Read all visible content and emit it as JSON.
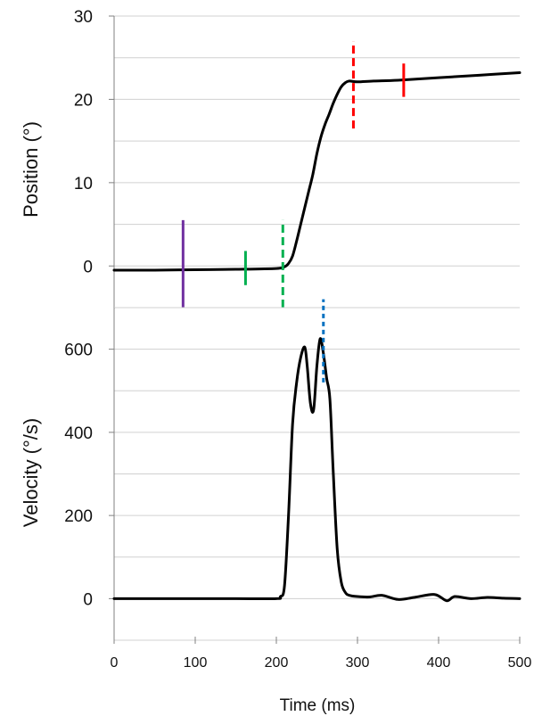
{
  "chart_data": [
    {
      "type": "line",
      "title": "",
      "xlabel": "",
      "ylabel": "Position (°)",
      "xlim": [
        0,
        500
      ],
      "ylim": [
        -5,
        30
      ],
      "yticks": [
        0,
        10,
        20,
        30
      ],
      "grid": "horizontal",
      "series": [
        {
          "color": "#000000",
          "x": [
            0,
            50,
            100,
            150,
            200,
            210,
            215,
            220,
            225,
            230,
            235,
            240,
            245,
            250,
            255,
            260,
            265,
            270,
            275,
            280,
            285,
            290,
            300,
            320,
            350,
            400,
            450,
            500
          ],
          "y": [
            -0.5,
            -0.5,
            -0.45,
            -0.4,
            -0.3,
            -0.1,
            0.3,
            1.2,
            3.0,
            5.0,
            7.0,
            9.0,
            11.0,
            13.5,
            15.5,
            17.0,
            18.2,
            19.5,
            20.6,
            21.5,
            22.0,
            22.2,
            22.1,
            22.2,
            22.3,
            22.6,
            22.9,
            23.2
          ]
        }
      ],
      "markers": [
        {
          "x": 85,
          "y1": -5,
          "y2": 5.5,
          "color": "#7030a0",
          "style": "solid"
        },
        {
          "x": 162,
          "y1": -2.3,
          "y2": 1.8,
          "color": "#00b050",
          "style": "solid"
        },
        {
          "x": 208,
          "y1": -5,
          "y2": 5.5,
          "color": "#00b050",
          "style": "dashed"
        },
        {
          "x": 295,
          "y1": 16.5,
          "y2": 27,
          "color": "#ff0000",
          "style": "dashed"
        },
        {
          "x": 357,
          "y1": 20.3,
          "y2": 24.3,
          "color": "#ff0000",
          "style": "solid"
        }
      ]
    },
    {
      "type": "line",
      "title": "",
      "xlabel": "Time (ms)",
      "ylabel": "Velocity (°/s)",
      "xlim": [
        0,
        500
      ],
      "ylim": [
        -100,
        700
      ],
      "xticks": [
        0,
        100,
        200,
        300,
        400,
        500
      ],
      "yticks": [
        0,
        200,
        400,
        600
      ],
      "grid": "horizontal",
      "series": [
        {
          "color": "#000000",
          "x": [
            0,
            50,
            100,
            150,
            200,
            205,
            210,
            215,
            220,
            225,
            230,
            235,
            238,
            242,
            246,
            250,
            254,
            258,
            262,
            266,
            270,
            275,
            280,
            285,
            290,
            300,
            315,
            330,
            350,
            370,
            395,
            410,
            420,
            440,
            460,
            480,
            500
          ],
          "y": [
            0,
            0,
            0,
            0,
            0,
            5,
            30,
            200,
            420,
            520,
            580,
            605,
            560,
            470,
            455,
            560,
            625,
            590,
            530,
            480,
            310,
            120,
            40,
            15,
            8,
            5,
            4,
            8,
            -2,
            3,
            10,
            -5,
            5,
            0,
            3,
            1,
            0
          ]
        }
      ],
      "markers": [
        {
          "x": 258,
          "y1": 520,
          "y2": 720,
          "color": "#0070c0",
          "style": "dotted"
        }
      ]
    }
  ]
}
